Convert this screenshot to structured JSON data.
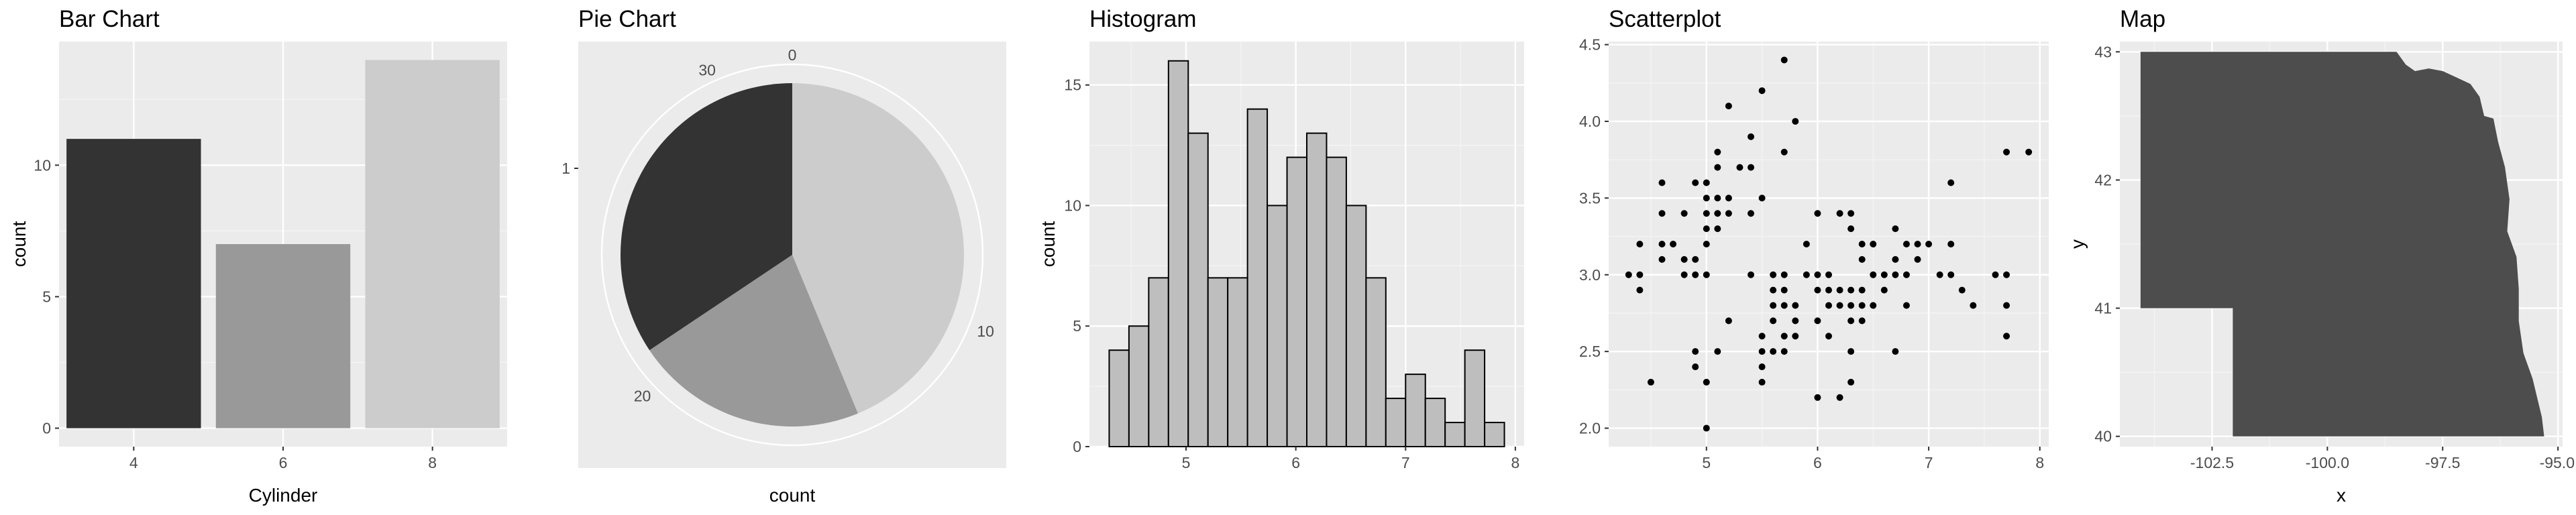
{
  "chart_data": [
    {
      "type": "bar",
      "title": "Bar Chart",
      "xlabel": "Cylinder",
      "ylabel": "count",
      "categories": [
        "4",
        "6",
        "8"
      ],
      "values": [
        11,
        7,
        14
      ],
      "colors": [
        "#333333",
        "#999999",
        "#cccccc"
      ],
      "ylim": [
        0,
        14
      ],
      "yticks": [
        "0",
        "5",
        "10"
      ],
      "grid": true
    },
    {
      "type": "pie",
      "title": "Pie Chart",
      "xlabel": "count",
      "ylabel": "",
      "y_tick": "1",
      "angle_ticks": [
        "0",
        "10",
        "20",
        "30"
      ],
      "values": [
        14,
        7,
        11
      ],
      "colors": [
        "#cccccc",
        "#999999",
        "#333333"
      ],
      "total": 32,
      "grid": true
    },
    {
      "type": "bar",
      "subtype": "histogram",
      "title": "Histogram",
      "xlabel": "",
      "ylabel": "count",
      "bin_start": 4.3,
      "bin_width": 0.18,
      "counts": [
        4,
        5,
        7,
        16,
        13,
        7,
        7,
        14,
        10,
        12,
        13,
        12,
        10,
        7,
        2,
        3,
        2,
        1,
        4,
        1
      ],
      "bar_color": "#bebebe",
      "xlim": [
        4.12,
        8.08
      ],
      "ylim": [
        0,
        16.8
      ],
      "xticks": [
        "5",
        "6",
        "7",
        "8"
      ],
      "yticks": [
        "0",
        "5",
        "10",
        "15"
      ],
      "grid": true
    },
    {
      "type": "scatter",
      "title": "Scatterplot",
      "xlabel": "",
      "ylabel": "",
      "xlim": [
        4.12,
        8.08
      ],
      "ylim": [
        1.88,
        4.52
      ],
      "xticks": [
        "5",
        "6",
        "7",
        "8"
      ],
      "yticks": [
        "2.0",
        "2.5",
        "3.0",
        "3.5",
        "4.0",
        "4.5"
      ],
      "points": [
        [
          4.3,
          3.0
        ],
        [
          4.4,
          2.9
        ],
        [
          4.4,
          3.0
        ],
        [
          4.4,
          3.2
        ],
        [
          4.5,
          2.3
        ],
        [
          4.6,
          3.1
        ],
        [
          4.6,
          3.2
        ],
        [
          4.6,
          3.4
        ],
        [
          4.6,
          3.6
        ],
        [
          4.7,
          3.2
        ],
        [
          4.8,
          3.0
        ],
        [
          4.8,
          3.1
        ],
        [
          4.8,
          3.4
        ],
        [
          4.9,
          2.4
        ],
        [
          4.9,
          2.5
        ],
        [
          4.9,
          3.0
        ],
        [
          4.9,
          3.1
        ],
        [
          4.9,
          3.6
        ],
        [
          5.0,
          2.0
        ],
        [
          5.0,
          2.3
        ],
        [
          5.0,
          3.0
        ],
        [
          5.0,
          3.2
        ],
        [
          5.0,
          3.3
        ],
        [
          5.0,
          3.4
        ],
        [
          5.0,
          3.5
        ],
        [
          5.0,
          3.6
        ],
        [
          5.1,
          2.5
        ],
        [
          5.1,
          3.3
        ],
        [
          5.1,
          3.4
        ],
        [
          5.1,
          3.5
        ],
        [
          5.1,
          3.7
        ],
        [
          5.1,
          3.8
        ],
        [
          5.2,
          2.7
        ],
        [
          5.2,
          3.4
        ],
        [
          5.2,
          3.5
        ],
        [
          5.2,
          4.1
        ],
        [
          5.3,
          3.7
        ],
        [
          5.4,
          3.0
        ],
        [
          5.4,
          3.4
        ],
        [
          5.4,
          3.7
        ],
        [
          5.4,
          3.9
        ],
        [
          5.5,
          2.3
        ],
        [
          5.5,
          2.4
        ],
        [
          5.5,
          2.5
        ],
        [
          5.5,
          2.6
        ],
        [
          5.5,
          3.5
        ],
        [
          5.5,
          4.2
        ],
        [
          5.6,
          2.5
        ],
        [
          5.6,
          2.7
        ],
        [
          5.6,
          2.8
        ],
        [
          5.6,
          2.9
        ],
        [
          5.6,
          3.0
        ],
        [
          5.7,
          2.5
        ],
        [
          5.7,
          2.6
        ],
        [
          5.7,
          2.8
        ],
        [
          5.7,
          2.9
        ],
        [
          5.7,
          3.0
        ],
        [
          5.7,
          3.8
        ],
        [
          5.7,
          4.4
        ],
        [
          5.8,
          2.6
        ],
        [
          5.8,
          2.7
        ],
        [
          5.8,
          2.8
        ],
        [
          5.8,
          4.0
        ],
        [
          5.9,
          3.0
        ],
        [
          5.9,
          3.2
        ],
        [
          6.0,
          2.2
        ],
        [
          6.0,
          2.7
        ],
        [
          6.0,
          2.9
        ],
        [
          6.0,
          3.0
        ],
        [
          6.0,
          3.4
        ],
        [
          6.1,
          2.6
        ],
        [
          6.1,
          2.8
        ],
        [
          6.1,
          2.9
        ],
        [
          6.1,
          3.0
        ],
        [
          6.2,
          2.2
        ],
        [
          6.2,
          2.8
        ],
        [
          6.2,
          2.9
        ],
        [
          6.2,
          3.4
        ],
        [
          6.3,
          2.3
        ],
        [
          6.3,
          2.5
        ],
        [
          6.3,
          2.7
        ],
        [
          6.3,
          2.8
        ],
        [
          6.3,
          2.9
        ],
        [
          6.3,
          3.3
        ],
        [
          6.3,
          3.4
        ],
        [
          6.4,
          2.7
        ],
        [
          6.4,
          2.8
        ],
        [
          6.4,
          2.9
        ],
        [
          6.4,
          3.1
        ],
        [
          6.4,
          3.2
        ],
        [
          6.5,
          2.8
        ],
        [
          6.5,
          3.0
        ],
        [
          6.5,
          3.2
        ],
        [
          6.6,
          2.9
        ],
        [
          6.6,
          3.0
        ],
        [
          6.7,
          2.5
        ],
        [
          6.7,
          3.0
        ],
        [
          6.7,
          3.1
        ],
        [
          6.7,
          3.3
        ],
        [
          6.8,
          2.8
        ],
        [
          6.8,
          3.0
        ],
        [
          6.8,
          3.2
        ],
        [
          6.9,
          3.1
        ],
        [
          6.9,
          3.2
        ],
        [
          7.0,
          3.2
        ],
        [
          7.1,
          3.0
        ],
        [
          7.2,
          3.0
        ],
        [
          7.2,
          3.2
        ],
        [
          7.2,
          3.6
        ],
        [
          7.3,
          2.9
        ],
        [
          7.4,
          2.8
        ],
        [
          7.6,
          3.0
        ],
        [
          7.7,
          2.6
        ],
        [
          7.7,
          2.8
        ],
        [
          7.7,
          3.0
        ],
        [
          7.7,
          3.8
        ],
        [
          7.9,
          3.8
        ]
      ],
      "point_color": "#000000",
      "grid": true
    },
    {
      "type": "area",
      "subtype": "map",
      "title": "Map",
      "xlabel": "x",
      "ylabel": "y",
      "xlim": [
        -104.5,
        -94.9
      ],
      "ylim": [
        39.92,
        43.08
      ],
      "xticks": [
        "-102.5",
        "-100.0",
        "-97.5",
        "-95.0"
      ],
      "yticks": [
        "40",
        "41",
        "42",
        "43"
      ],
      "fill_color": "#4d4d4d",
      "outline": [
        [
          -104.05,
          43.0
        ],
        [
          -98.5,
          43.0
        ],
        [
          -98.3,
          42.9
        ],
        [
          -98.1,
          42.85
        ],
        [
          -97.8,
          42.87
        ],
        [
          -97.5,
          42.85
        ],
        [
          -97.2,
          42.8
        ],
        [
          -96.9,
          42.75
        ],
        [
          -96.7,
          42.65
        ],
        [
          -96.6,
          42.5
        ],
        [
          -96.4,
          42.48
        ],
        [
          -96.3,
          42.3
        ],
        [
          -96.15,
          42.1
        ],
        [
          -96.05,
          41.85
        ],
        [
          -96.1,
          41.6
        ],
        [
          -95.9,
          41.4
        ],
        [
          -95.85,
          41.15
        ],
        [
          -95.85,
          40.9
        ],
        [
          -95.75,
          40.65
        ],
        [
          -95.55,
          40.45
        ],
        [
          -95.35,
          40.15
        ],
        [
          -95.3,
          40.0
        ],
        [
          -102.05,
          40.0
        ],
        [
          -102.05,
          41.0
        ],
        [
          -104.05,
          41.0
        ]
      ],
      "grid": true
    }
  ]
}
